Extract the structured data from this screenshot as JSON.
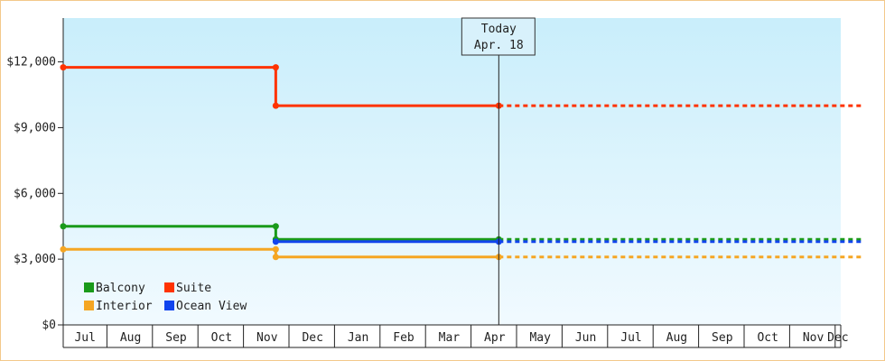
{
  "chart_data": {
    "type": "line",
    "step": true,
    "title": "",
    "xlabel": "",
    "ylabel": "",
    "ylim": [
      0,
      14000
    ],
    "yticks": [
      0,
      3000,
      6000,
      9000,
      12000
    ],
    "ytick_labels": [
      "$0",
      "$3,000",
      "$6,000",
      "$9,000",
      "$12,000"
    ],
    "x_months": [
      "Jul",
      "Aug",
      "Sep",
      "Oct",
      "Nov",
      "Dec",
      "Jan",
      "Feb",
      "Mar",
      "Apr",
      "May",
      "Jun",
      "Jul",
      "Aug",
      "Sep",
      "Oct",
      "Nov",
      "Dec"
    ],
    "today": {
      "label": "Today",
      "date_label": "Apr. 18",
      "month_index": 9.57
    },
    "x_end_month_index": 17.6,
    "grid": false,
    "legend_position": "bottom-left",
    "series": [
      {
        "name": "Balcony",
        "color": "#1a9a1a",
        "points": [
          [
            0,
            4500
          ],
          [
            4.67,
            4500
          ],
          [
            4.67,
            3900
          ],
          [
            9.57,
            3900
          ]
        ],
        "projected": 3900
      },
      {
        "name": "Suite",
        "color": "#ff3300",
        "points": [
          [
            0,
            11750
          ],
          [
            4.67,
            11750
          ],
          [
            4.67,
            10000
          ],
          [
            9.57,
            10000
          ]
        ],
        "projected": 10000
      },
      {
        "name": "Interior",
        "color": "#f5a623",
        "points": [
          [
            0,
            3450
          ],
          [
            4.67,
            3450
          ],
          [
            4.67,
            3100
          ],
          [
            9.57,
            3100
          ]
        ],
        "projected": 3100
      },
      {
        "name": "Ocean View",
        "color": "#1144ee",
        "points": [
          [
            4.67,
            3800
          ],
          [
            9.57,
            3800
          ]
        ],
        "projected": 3800
      }
    ]
  }
}
